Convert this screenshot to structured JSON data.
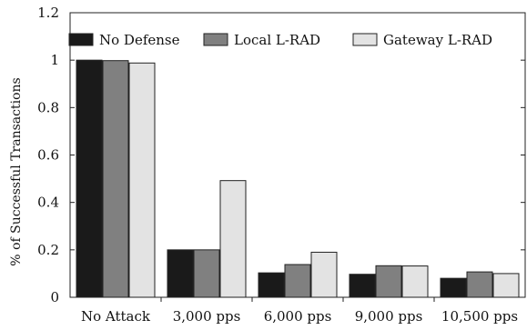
{
  "chart_data": {
    "type": "bar",
    "categories": [
      "No Attack",
      "3,000 pps",
      "6,000 pps",
      "9,000 pps",
      "10,500 pps"
    ],
    "series": [
      {
        "name": "No Defense",
        "color": "#1a1a1a",
        "values": [
          1.0,
          0.2,
          0.103,
          0.097,
          0.08
        ]
      },
      {
        "name": "Local L-RAD",
        "color": "#808080",
        "values": [
          0.998,
          0.2,
          0.138,
          0.133,
          0.107
        ]
      },
      {
        "name": "Gateway L-RAD",
        "color": "#e3e3e3",
        "values": [
          0.988,
          0.492,
          0.19,
          0.132,
          0.1
        ]
      }
    ],
    "ylabel": "% of Successful Transactions",
    "xlabel": "",
    "ylim": [
      0,
      1.2
    ],
    "yticks": [
      "0",
      "0.2",
      "0.4",
      "0.6",
      "0.8",
      "1",
      "1.2"
    ],
    "grid": false,
    "legend_position": "top"
  }
}
